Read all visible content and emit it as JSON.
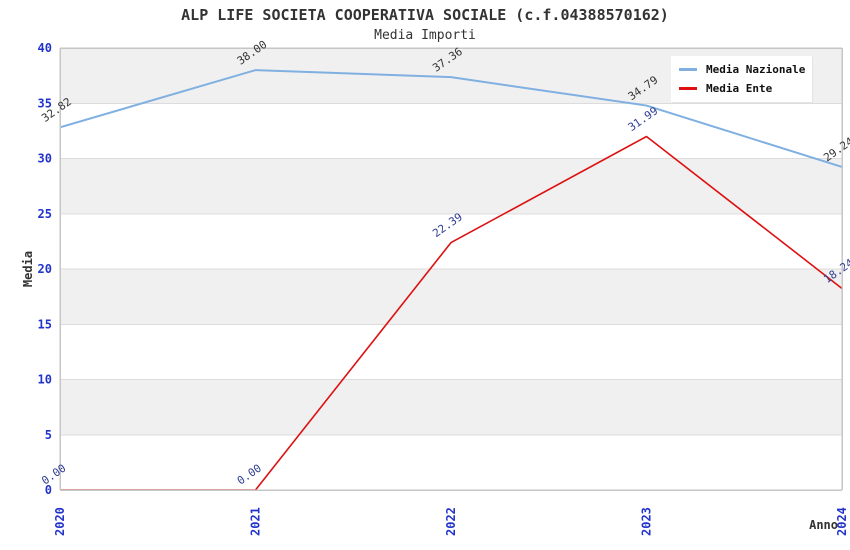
{
  "header": {
    "title": "ALP LIFE SOCIETA COOPERATIVA SOCIALE (c.f.04388570162)",
    "subtitle": "Media Importi"
  },
  "legend": {
    "items": [
      {
        "label": "Media Nazionale",
        "color": "#7fb0e1"
      },
      {
        "label": "Media Ente",
        "color": "#dd1111"
      }
    ]
  },
  "chart_data": {
    "type": "line",
    "title": "ALP LIFE SOCIETA COOPERATIVA SOCIALE (c.f.04388570162)",
    "subtitle": "Media Importi",
    "categories": [
      "2020",
      "2021",
      "2022",
      "2023",
      "2024"
    ],
    "series": [
      {
        "name": "Media Nazionale",
        "color": "#7fb0e1",
        "label_color": "#333333",
        "values": [
          32.82,
          38.0,
          37.36,
          34.79,
          29.24
        ]
      },
      {
        "name": "Media Ente",
        "color": "#dd1111",
        "label_color": "#2e3d93",
        "values": [
          0.0,
          0.0,
          22.39,
          31.99,
          18.24
        ]
      }
    ],
    "xlabel": "Anno",
    "ylabel": "Media",
    "ylim": [
      0,
      40
    ],
    "ytick_step": 5,
    "yticks": [
      0,
      5,
      10,
      15,
      20,
      25,
      30,
      35,
      40
    ],
    "grid": "horizontal",
    "alternating_bands": true,
    "band_color": "#f0f0f0",
    "gridline_color": "#dcdcdc",
    "spine_color": "#c6c6c6",
    "tick_label_color": "#2233cc",
    "axis_title_color": "#333333",
    "legend_position": "top-right",
    "point_labels_decimals": 2
  }
}
